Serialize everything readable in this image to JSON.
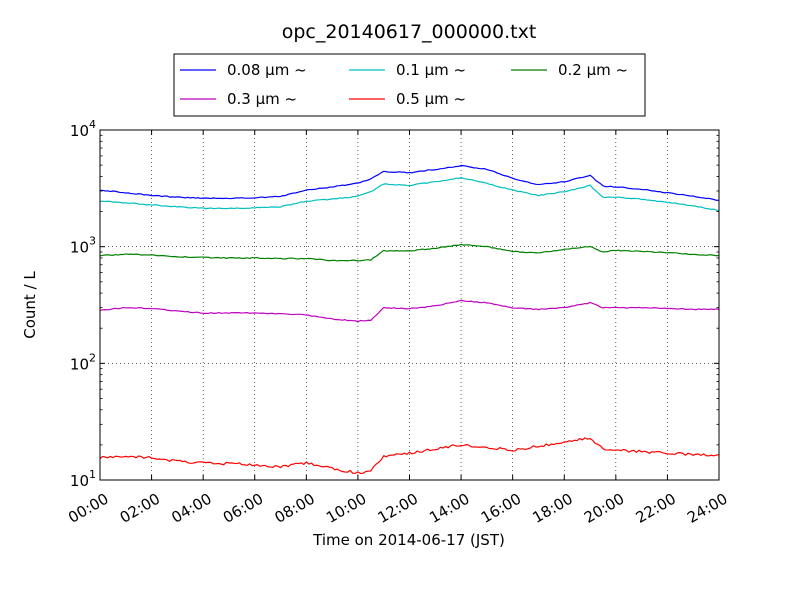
{
  "chart_data": {
    "type": "line",
    "title": "opc_20140617_000000.txt",
    "xlabel": "Time on 2014-06-17 (JST)",
    "ylabel": "Count / L",
    "yscale": "log",
    "ylim": [
      10,
      10000
    ],
    "xlim": [
      "00:00",
      "24:00"
    ],
    "grid": true,
    "legend_position": "top, above plot",
    "x_ticks": [
      "00:00",
      "02:00",
      "04:00",
      "06:00",
      "08:00",
      "10:00",
      "12:00",
      "14:00",
      "16:00",
      "18:00",
      "20:00",
      "22:00",
      "24:00"
    ],
    "y_ticks": [
      {
        "value": 10,
        "base": "10",
        "exp": "1"
      },
      {
        "value": 100,
        "base": "10",
        "exp": "2"
      },
      {
        "value": 1000,
        "base": "10",
        "exp": "3"
      },
      {
        "value": 10000,
        "base": "10",
        "exp": "4"
      }
    ],
    "x": [
      "00:00",
      "01:00",
      "02:00",
      "03:00",
      "04:00",
      "05:00",
      "06:00",
      "07:00",
      "08:00",
      "09:00",
      "10:00",
      "10:30",
      "11:00",
      "12:00",
      "13:00",
      "14:00",
      "15:00",
      "16:00",
      "17:00",
      "18:00",
      "19:00",
      "19:30",
      "20:00",
      "21:00",
      "22:00",
      "23:00",
      "24:00"
    ],
    "series": [
      {
        "name": "0.08 μm ~",
        "color": "#0000ff",
        "values": [
          3050,
          2900,
          2750,
          2650,
          2600,
          2600,
          2620,
          2700,
          3050,
          3250,
          3500,
          3800,
          4400,
          4300,
          4600,
          4950,
          4600,
          3850,
          3400,
          3600,
          4100,
          3300,
          3250,
          3100,
          2900,
          2700,
          2500
        ]
      },
      {
        "name": "0.1 μm ~",
        "color": "#00bfbf",
        "values": [
          2450,
          2380,
          2280,
          2200,
          2130,
          2130,
          2150,
          2200,
          2450,
          2560,
          2700,
          2950,
          3450,
          3350,
          3600,
          3900,
          3500,
          3050,
          2750,
          2950,
          3350,
          2650,
          2650,
          2550,
          2400,
          2230,
          2050
        ]
      },
      {
        "name": "0.2 μm ~",
        "color": "#008000",
        "values": [
          840,
          860,
          850,
          820,
          810,
          800,
          800,
          790,
          790,
          760,
          760,
          770,
          920,
          920,
          970,
          1040,
          1000,
          910,
          880,
          950,
          1010,
          900,
          930,
          910,
          890,
          860,
          840
        ]
      },
      {
        "name": "0.3 μm ~",
        "color": "#bf00bf",
        "values": [
          285,
          300,
          295,
          280,
          270,
          270,
          270,
          265,
          260,
          240,
          230,
          235,
          300,
          295,
          310,
          345,
          330,
          300,
          290,
          300,
          330,
          300,
          300,
          300,
          295,
          290,
          290
        ]
      },
      {
        "name": "0.5 μm ~",
        "color": "#ff0000",
        "values": [
          15.5,
          16,
          15.5,
          14.5,
          14,
          13.8,
          13.5,
          13,
          14,
          12.5,
          11.5,
          12,
          16,
          17,
          18.5,
          20,
          19,
          18,
          19.5,
          21,
          23,
          18.5,
          18,
          17.5,
          17,
          16.5,
          16.5
        ]
      }
    ]
  }
}
